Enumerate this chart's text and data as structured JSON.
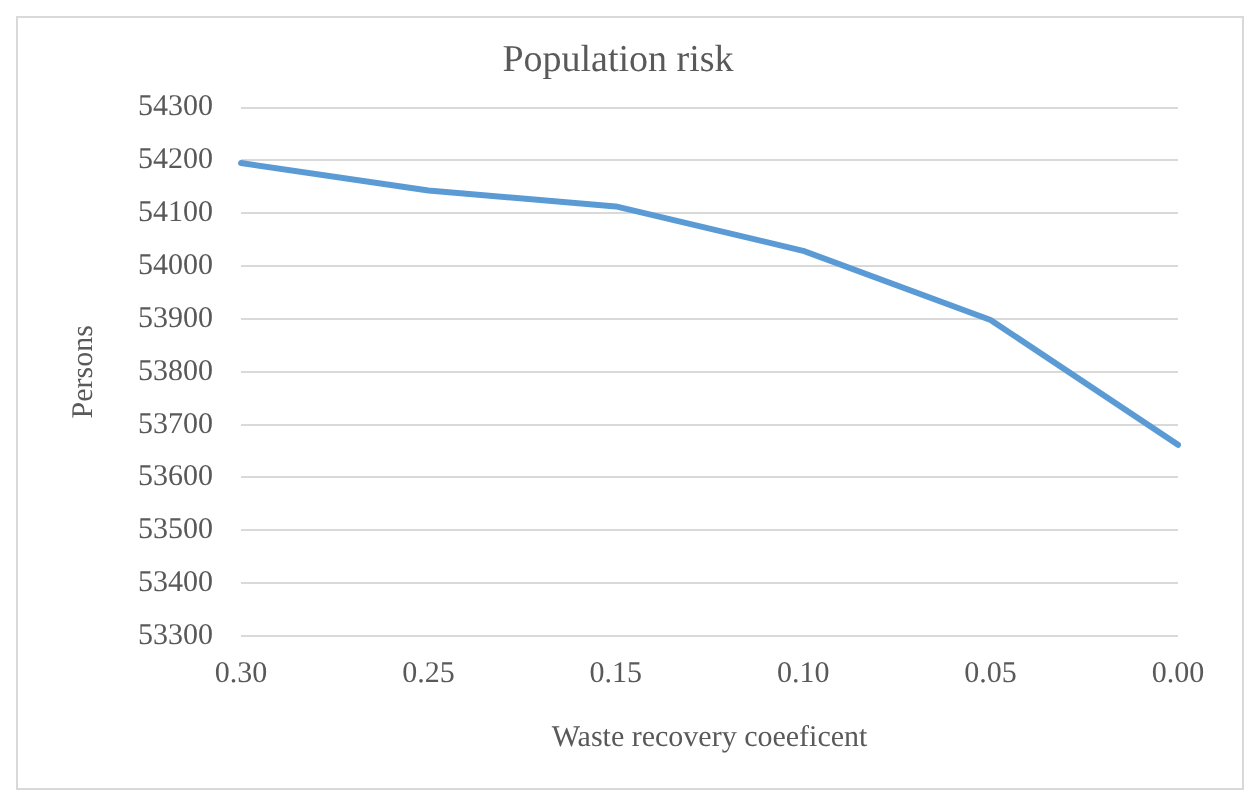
{
  "chart_data": {
    "type": "line",
    "title": "Population risk",
    "xlabel": "Waste recovery coeeficent",
    "ylabel": "Persons",
    "categories": [
      "0.30",
      "0.25",
      "0.15",
      "0.10",
      "0.05",
      "0.00"
    ],
    "series": [
      {
        "color": "#5b9bd5",
        "values": [
          54195,
          54143,
          54113,
          54029,
          53898,
          53662
        ]
      }
    ],
    "ylim": [
      53300,
      54300
    ],
    "yticks": [
      53300,
      53400,
      53500,
      53600,
      53700,
      53800,
      53900,
      54000,
      54100,
      54200,
      54300
    ],
    "grid": "y",
    "legend": false,
    "marker": "none",
    "line_style": "solid"
  }
}
